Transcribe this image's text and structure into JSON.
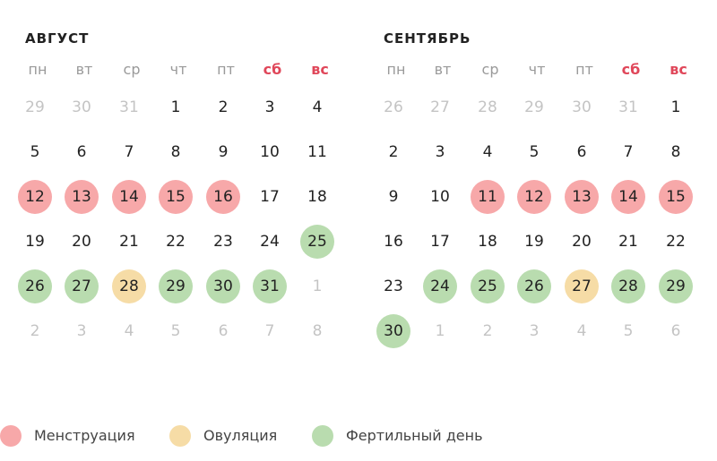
{
  "colors": {
    "menstruation": "#f7a8a9",
    "ovulation": "#f6dca6",
    "fertile": "#b9dcaf",
    "weekend_text": "#e0475a",
    "muted_text": "#c4c4c4"
  },
  "weekdays": [
    "пн",
    "вт",
    "ср",
    "чт",
    "пт",
    "сб",
    "вс"
  ],
  "months": [
    {
      "title": "АВГУСТ",
      "weeks": [
        [
          {
            "d": "29",
            "o": true
          },
          {
            "d": "30",
            "o": true
          },
          {
            "d": "31",
            "o": true
          },
          {
            "d": "1"
          },
          {
            "d": "2"
          },
          {
            "d": "3"
          },
          {
            "d": "4"
          }
        ],
        [
          {
            "d": "5"
          },
          {
            "d": "6"
          },
          {
            "d": "7"
          },
          {
            "d": "8"
          },
          {
            "d": "9"
          },
          {
            "d": "10"
          },
          {
            "d": "11"
          }
        ],
        [
          {
            "d": "12",
            "t": "menses"
          },
          {
            "d": "13",
            "t": "menses"
          },
          {
            "d": "14",
            "t": "menses"
          },
          {
            "d": "15",
            "t": "menses"
          },
          {
            "d": "16",
            "t": "menses"
          },
          {
            "d": "17"
          },
          {
            "d": "18"
          }
        ],
        [
          {
            "d": "19"
          },
          {
            "d": "20"
          },
          {
            "d": "21"
          },
          {
            "d": "22"
          },
          {
            "d": "23"
          },
          {
            "d": "24"
          },
          {
            "d": "25",
            "t": "fert"
          }
        ],
        [
          {
            "d": "26",
            "t": "fert"
          },
          {
            "d": "27",
            "t": "fert"
          },
          {
            "d": "28",
            "t": "ovul"
          },
          {
            "d": "29",
            "t": "fert"
          },
          {
            "d": "30",
            "t": "fert"
          },
          {
            "d": "31",
            "t": "fert"
          },
          {
            "d": "1",
            "o": true
          }
        ],
        [
          {
            "d": "2",
            "o": true
          },
          {
            "d": "3",
            "o": true
          },
          {
            "d": "4",
            "o": true
          },
          {
            "d": "5",
            "o": true
          },
          {
            "d": "6",
            "o": true
          },
          {
            "d": "7",
            "o": true
          },
          {
            "d": "8",
            "o": true
          }
        ]
      ]
    },
    {
      "title": "СЕНТЯБРЬ",
      "weeks": [
        [
          {
            "d": "26",
            "o": true
          },
          {
            "d": "27",
            "o": true
          },
          {
            "d": "28",
            "o": true
          },
          {
            "d": "29",
            "o": true
          },
          {
            "d": "30",
            "o": true
          },
          {
            "d": "31",
            "o": true
          },
          {
            "d": "1"
          }
        ],
        [
          {
            "d": "2"
          },
          {
            "d": "3"
          },
          {
            "d": "4"
          },
          {
            "d": "5"
          },
          {
            "d": "6"
          },
          {
            "d": "7"
          },
          {
            "d": "8"
          }
        ],
        [
          {
            "d": "9"
          },
          {
            "d": "10"
          },
          {
            "d": "11",
            "t": "menses"
          },
          {
            "d": "12",
            "t": "menses"
          },
          {
            "d": "13",
            "t": "menses"
          },
          {
            "d": "14",
            "t": "menses"
          },
          {
            "d": "15",
            "t": "menses"
          }
        ],
        [
          {
            "d": "16"
          },
          {
            "d": "17"
          },
          {
            "d": "18"
          },
          {
            "d": "19"
          },
          {
            "d": "20"
          },
          {
            "d": "21"
          },
          {
            "d": "22"
          }
        ],
        [
          {
            "d": "23"
          },
          {
            "d": "24",
            "t": "fert"
          },
          {
            "d": "25",
            "t": "fert"
          },
          {
            "d": "26",
            "t": "fert"
          },
          {
            "d": "27",
            "t": "ovul"
          },
          {
            "d": "28",
            "t": "fert"
          },
          {
            "d": "29",
            "t": "fert"
          }
        ],
        [
          {
            "d": "30",
            "t": "fert"
          },
          {
            "d": "1",
            "o": true
          },
          {
            "d": "2",
            "o": true
          },
          {
            "d": "3",
            "o": true
          },
          {
            "d": "4",
            "o": true
          },
          {
            "d": "5",
            "o": true
          },
          {
            "d": "6",
            "o": true
          }
        ]
      ]
    }
  ],
  "legend": {
    "menstruation_label": "Менструация",
    "ovulation_label": "Овуляция",
    "fertile_label": "Фертильный день"
  }
}
